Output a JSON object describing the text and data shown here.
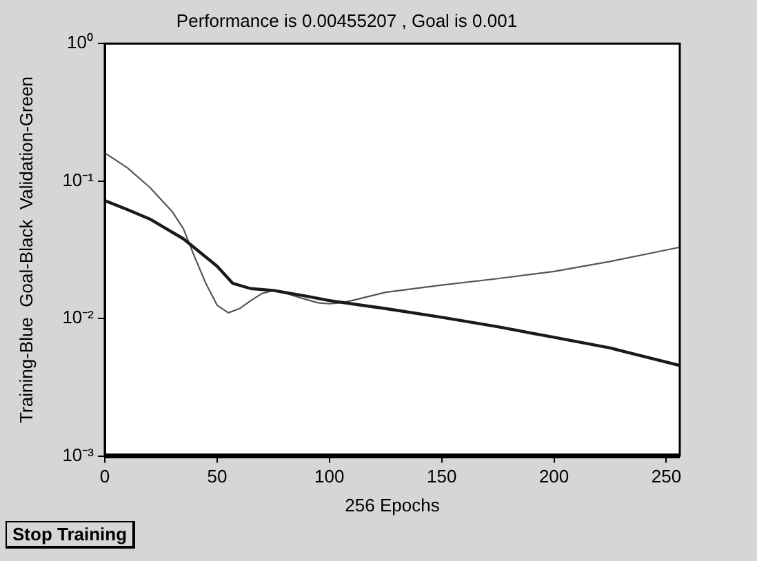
{
  "chart_data": {
    "type": "line",
    "title": "Performance is 0.00455207 , Goal is 0.001",
    "xlabel": "256 Epochs",
    "ylabel": "Training-Blue  Goal-Black  Validation-Green",
    "log": "y",
    "grid": false,
    "legend": false,
    "marker": "none",
    "xlim": [
      0,
      256
    ],
    "xticks": [
      0,
      50,
      100,
      150,
      200,
      250
    ],
    "ylim": [
      0.001,
      1
    ],
    "yticks": [
      {
        "value": 0.001,
        "label": "10⁻³"
      },
      {
        "value": 0.01,
        "label": "10⁻²"
      },
      {
        "value": 0.1,
        "label": "10⁻¹"
      },
      {
        "value": 1,
        "label": "10⁰"
      }
    ],
    "series": [
      {
        "color": "#1a1a1a",
        "x": [
          0,
          10,
          20,
          35,
          45,
          50,
          57,
          65,
          75,
          90,
          100,
          125,
          150,
          175,
          200,
          225,
          256
        ],
        "values": [
          0.072,
          0.062,
          0.053,
          0.038,
          0.028,
          0.024,
          0.018,
          0.0165,
          0.016,
          0.0145,
          0.0135,
          0.0118,
          0.0102,
          0.0087,
          0.0073,
          0.0061,
          0.00455
        ]
      },
      {
        "color": "#555555",
        "x": [
          0,
          10,
          20,
          30,
          35,
          40,
          45,
          50,
          55,
          60,
          65,
          70,
          75,
          82,
          90,
          95,
          100,
          105,
          110,
          125,
          150,
          175,
          200,
          225,
          256
        ],
        "values": [
          0.16,
          0.125,
          0.09,
          0.06,
          0.045,
          0.028,
          0.018,
          0.0125,
          0.011,
          0.0118,
          0.0135,
          0.0152,
          0.016,
          0.015,
          0.0137,
          0.013,
          0.0128,
          0.013,
          0.0135,
          0.0155,
          0.0175,
          0.0195,
          0.022,
          0.026,
          0.033
        ]
      }
    ],
    "ref_lines": [
      {
        "axis": "y",
        "value": 0.001,
        "color": "#000000"
      }
    ],
    "annotations": [
      "Stop Training"
    ]
  }
}
